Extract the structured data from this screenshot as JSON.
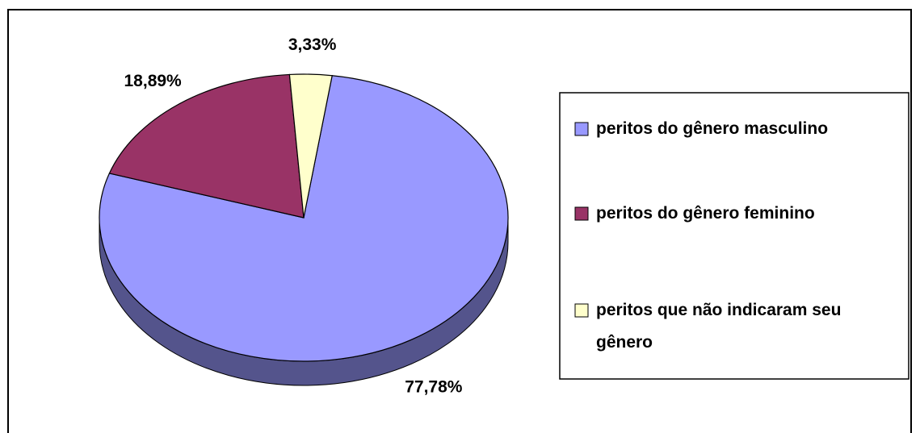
{
  "chart_data": {
    "type": "pie",
    "categories": [
      "peritos do gênero masculino",
      "peritos do gênero feminino",
      "peritos que não indicaram seu gênero"
    ],
    "values": [
      77.78,
      18.89,
      3.33
    ],
    "value_labels": [
      "77,78%",
      "18,89%",
      "3,33%"
    ],
    "colors": [
      "#9999ff",
      "#993366",
      "#ffffcc"
    ],
    "legend": "right"
  }
}
